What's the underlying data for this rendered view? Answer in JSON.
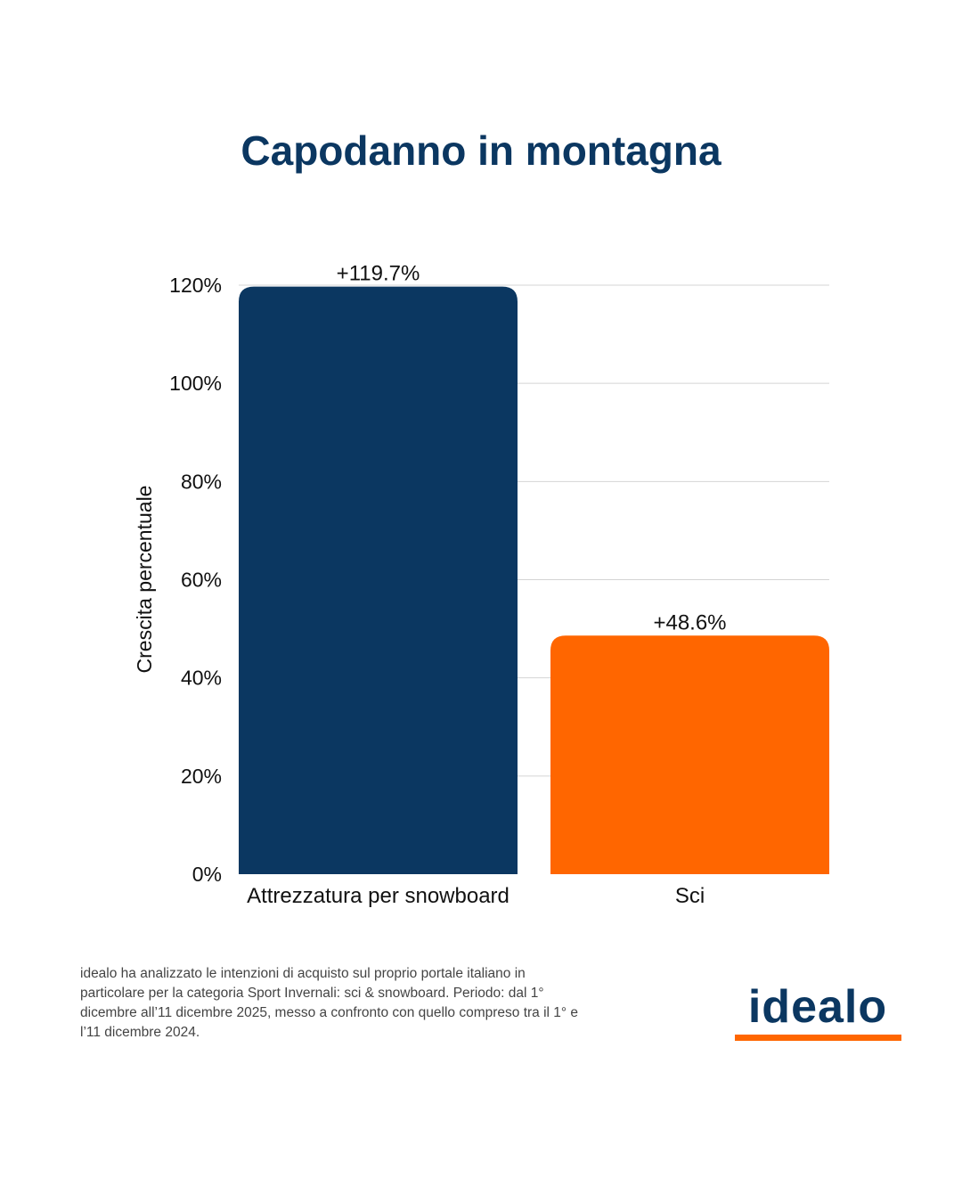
{
  "title": "Capodanno in montagna",
  "chart_data": {
    "type": "bar",
    "categories": [
      "Attrezzatura per snowboard",
      "Sci"
    ],
    "values": [
      119.7,
      48.6
    ],
    "data_labels": [
      "+119.7%",
      "+48.6%"
    ],
    "colors": [
      "#0b3761",
      "#ff6600"
    ],
    "ylabel": "Crescita percentuale",
    "ylim": [
      0,
      120
    ],
    "yticks": [
      0,
      20,
      40,
      60,
      80,
      100,
      120
    ],
    "ytick_labels": [
      "0%",
      "20%",
      "40%",
      "60%",
      "80%",
      "100%",
      "120%"
    ],
    "grid": true
  },
  "footnote": "idealo ha analizzato le intenzioni di acquisto sul proprio portale italiano in particolare per la categoria Sport Invernali: sci & snowboard. Periodo: dal 1° dicembre all’11 dicembre 2025, messo a confronto con quello compreso tra il 1° e l’11 dicembre 2024.",
  "logo": {
    "text": "idealo",
    "text_color": "#0b3761",
    "underline_color": "#ff6600"
  }
}
